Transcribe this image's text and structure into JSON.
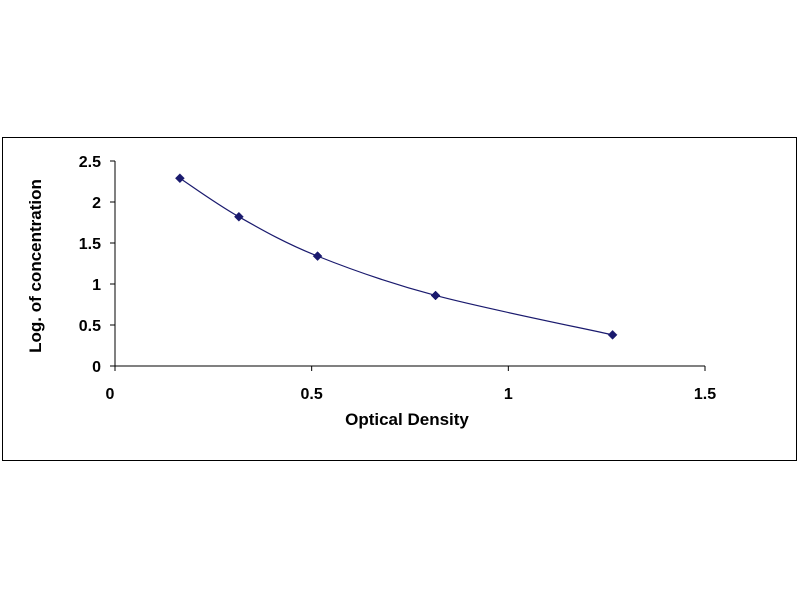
{
  "chart_data": {
    "type": "scatter",
    "xlabel": "Optical Density",
    "ylabel": "Log. of concentration",
    "xlim": [
      0,
      1.5
    ],
    "ylim": [
      0,
      2.5
    ],
    "x_ticks": [
      0,
      0.5,
      1,
      1.5
    ],
    "x_tick_labels": [
      "0",
      "0.5",
      "1",
      "1.5"
    ],
    "y_ticks": [
      0,
      0.5,
      1,
      1.5,
      2,
      2.5
    ],
    "y_tick_labels": [
      "0",
      "0.5",
      "1",
      "1.5",
      "2",
      "2.5"
    ],
    "grid": false,
    "legend": "none",
    "trendline": "smooth curve",
    "marker_color": "#1a1a6e",
    "line_color": "#1a1a6e",
    "series": [
      {
        "x": [
          0.165,
          0.315,
          0.515,
          0.815,
          1.265
        ],
        "y": [
          2.29,
          1.82,
          1.34,
          0.86,
          0.38
        ]
      }
    ]
  }
}
